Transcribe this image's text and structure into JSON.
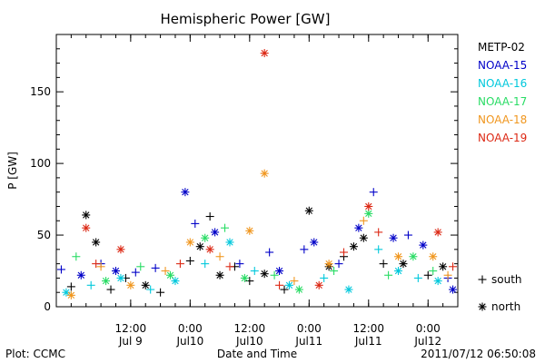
{
  "chart_data": {
    "type": "scatter",
    "title": "Hemispheric Power [GW]",
    "xlabel": "Date and Time",
    "ylabel": "P [GW]",
    "xlim": [
      "2011-07-08T21:00",
      "2011-07-12T06:00"
    ],
    "ylim": [
      0,
      190
    ],
    "yticks": [
      0,
      50,
      100,
      150
    ],
    "xticks": [
      {
        "t": "2011-07-09T12:00",
        "line1": "12:00",
        "line2": "Jul 9"
      },
      {
        "t": "2011-07-10T00:00",
        "line1": "0:00",
        "line2": "Jul10"
      },
      {
        "t": "2011-07-10T12:00",
        "line1": "12:00",
        "line2": "Jul10"
      },
      {
        "t": "2011-07-11T00:00",
        "line1": "0:00",
        "line2": "Jul11"
      },
      {
        "t": "2011-07-11T12:00",
        "line1": "12:00",
        "line2": "Jul11"
      },
      {
        "t": "2011-07-12T00:00",
        "line1": "0:00",
        "line2": "Jul12"
      }
    ],
    "legend_position": "right",
    "marker_legend": [
      {
        "symbol": "+",
        "label": "south"
      },
      {
        "symbol": "*",
        "label": "north"
      }
    ],
    "series": [
      {
        "name": "METP-02",
        "color": "#000000",
        "points": [
          [
            "2011-07-09T00:00",
            14,
            "+"
          ],
          [
            "2011-07-09T03:00",
            64,
            "*"
          ],
          [
            "2011-07-09T05:00",
            45,
            "*"
          ],
          [
            "2011-07-09T08:00",
            12,
            "+"
          ],
          [
            "2011-07-09T11:00",
            20,
            "+"
          ],
          [
            "2011-07-09T15:00",
            15,
            "*"
          ],
          [
            "2011-07-09T18:00",
            10,
            "+"
          ],
          [
            "2011-07-10T00:00",
            32,
            "+"
          ],
          [
            "2011-07-10T02:00",
            42,
            "*"
          ],
          [
            "2011-07-10T04:00",
            63,
            "+"
          ],
          [
            "2011-07-10T06:00",
            22,
            "*"
          ],
          [
            "2011-07-10T09:00",
            28,
            "+"
          ],
          [
            "2011-07-10T12:00",
            18,
            "+"
          ],
          [
            "2011-07-10T15:00",
            23,
            "*"
          ],
          [
            "2011-07-10T19:00",
            12,
            "+"
          ],
          [
            "2011-07-11T00:00",
            67,
            "*"
          ],
          [
            "2011-07-11T04:00",
            28,
            "*"
          ],
          [
            "2011-07-11T07:00",
            35,
            "+"
          ],
          [
            "2011-07-11T09:00",
            42,
            "*"
          ],
          [
            "2011-07-11T11:00",
            48,
            "*"
          ],
          [
            "2011-07-11T15:00",
            30,
            "+"
          ],
          [
            "2011-07-11T19:00",
            30,
            "*"
          ],
          [
            "2011-07-12T00:00",
            22,
            "+"
          ],
          [
            "2011-07-12T03:00",
            28,
            "*"
          ]
        ]
      },
      {
        "name": "NOAA-15",
        "color": "#0000c8",
        "points": [
          [
            "2011-07-08T22:00",
            26,
            "+"
          ],
          [
            "2011-07-09T02:00",
            22,
            "*"
          ],
          [
            "2011-07-09T06:00",
            30,
            "+"
          ],
          [
            "2011-07-09T09:00",
            25,
            "*"
          ],
          [
            "2011-07-09T13:00",
            24,
            "+"
          ],
          [
            "2011-07-09T17:00",
            27,
            "+"
          ],
          [
            "2011-07-09T23:00",
            80,
            "*"
          ],
          [
            "2011-07-10T01:00",
            58,
            "+"
          ],
          [
            "2011-07-10T05:00",
            52,
            "*"
          ],
          [
            "2011-07-10T10:00",
            30,
            "+"
          ],
          [
            "2011-07-10T16:00",
            38,
            "+"
          ],
          [
            "2011-07-10T18:00",
            25,
            "*"
          ],
          [
            "2011-07-10T23:00",
            40,
            "+"
          ],
          [
            "2011-07-11T01:00",
            45,
            "*"
          ],
          [
            "2011-07-11T06:00",
            30,
            "+"
          ],
          [
            "2011-07-11T10:00",
            55,
            "*"
          ],
          [
            "2011-07-11T13:00",
            80,
            "+"
          ],
          [
            "2011-07-11T17:00",
            48,
            "*"
          ],
          [
            "2011-07-11T20:00",
            50,
            "+"
          ],
          [
            "2011-07-11T23:00",
            43,
            "*"
          ],
          [
            "2011-07-12T04:00",
            20,
            "+"
          ],
          [
            "2011-07-12T05:00",
            12,
            "*"
          ]
        ]
      },
      {
        "name": "NOAA-16",
        "color": "#00c8dc",
        "points": [
          [
            "2011-07-08T23:00",
            10,
            "*"
          ],
          [
            "2011-07-09T04:00",
            15,
            "+"
          ],
          [
            "2011-07-09T10:00",
            20,
            "*"
          ],
          [
            "2011-07-09T16:00",
            12,
            "+"
          ],
          [
            "2011-07-09T21:00",
            18,
            "*"
          ],
          [
            "2011-07-10T03:00",
            30,
            "+"
          ],
          [
            "2011-07-10T08:00",
            45,
            "*"
          ],
          [
            "2011-07-10T13:00",
            25,
            "+"
          ],
          [
            "2011-07-10T20:00",
            15,
            "*"
          ],
          [
            "2011-07-11T03:00",
            20,
            "+"
          ],
          [
            "2011-07-11T08:00",
            12,
            "*"
          ],
          [
            "2011-07-11T14:00",
            40,
            "+"
          ],
          [
            "2011-07-11T18:00",
            25,
            "*"
          ],
          [
            "2011-07-11T22:00",
            20,
            "+"
          ],
          [
            "2011-07-12T02:00",
            18,
            "*"
          ]
        ]
      },
      {
        "name": "NOAA-17",
        "color": "#28dc64",
        "points": [
          [
            "2011-07-09T01:00",
            35,
            "+"
          ],
          [
            "2011-07-09T07:00",
            18,
            "*"
          ],
          [
            "2011-07-09T14:00",
            28,
            "+"
          ],
          [
            "2011-07-09T20:00",
            22,
            "*"
          ],
          [
            "2011-07-10T03:00",
            48,
            "*"
          ],
          [
            "2011-07-10T07:00",
            55,
            "+"
          ],
          [
            "2011-07-10T11:00",
            20,
            "*"
          ],
          [
            "2011-07-10T17:00",
            22,
            "+"
          ],
          [
            "2011-07-10T22:00",
            12,
            "*"
          ],
          [
            "2011-07-11T05:00",
            25,
            "+"
          ],
          [
            "2011-07-11T12:00",
            65,
            "*"
          ],
          [
            "2011-07-11T16:00",
            22,
            "+"
          ],
          [
            "2011-07-11T21:00",
            35,
            "*"
          ],
          [
            "2011-07-12T01:00",
            25,
            "+"
          ]
        ]
      },
      {
        "name": "NOAA-18",
        "color": "#f0961e",
        "points": [
          [
            "2011-07-09T00:00",
            8,
            "*"
          ],
          [
            "2011-07-09T06:00",
            28,
            "+"
          ],
          [
            "2011-07-09T12:00",
            15,
            "*"
          ],
          [
            "2011-07-09T19:00",
            25,
            "+"
          ],
          [
            "2011-07-10T00:00",
            45,
            "*"
          ],
          [
            "2011-07-10T06:00",
            35,
            "+"
          ],
          [
            "2011-07-10T12:00",
            53,
            "*"
          ],
          [
            "2011-07-10T15:00",
            93,
            "*"
          ],
          [
            "2011-07-10T21:00",
            18,
            "+"
          ],
          [
            "2011-07-11T04:00",
            30,
            "*"
          ],
          [
            "2011-07-11T11:00",
            60,
            "+"
          ],
          [
            "2011-07-11T18:00",
            35,
            "*"
          ],
          [
            "2011-07-12T01:00",
            35,
            "*"
          ],
          [
            "2011-07-12T04:00",
            22,
            "+"
          ]
        ]
      },
      {
        "name": "NOAA-19",
        "color": "#dc2814",
        "points": [
          [
            "2011-07-09T03:00",
            55,
            "*"
          ],
          [
            "2011-07-09T05:00",
            30,
            "+"
          ],
          [
            "2011-07-09T10:00",
            40,
            "*"
          ],
          [
            "2011-07-09T22:00",
            30,
            "+"
          ],
          [
            "2011-07-10T04:00",
            40,
            "*"
          ],
          [
            "2011-07-10T08:00",
            28,
            "+"
          ],
          [
            "2011-07-10T15:00",
            177,
            "*"
          ],
          [
            "2011-07-10T18:00",
            15,
            "+"
          ],
          [
            "2011-07-11T02:00",
            15,
            "*"
          ],
          [
            "2011-07-11T07:00",
            38,
            "+"
          ],
          [
            "2011-07-11T12:00",
            70,
            "*"
          ],
          [
            "2011-07-11T14:00",
            52,
            "+"
          ],
          [
            "2011-07-12T02:00",
            52,
            "*"
          ],
          [
            "2011-07-12T05:00",
            28,
            "+"
          ]
        ]
      }
    ]
  },
  "footer": {
    "left": "Plot: CCMC",
    "right": "2011/07/12 06:50:08"
  }
}
